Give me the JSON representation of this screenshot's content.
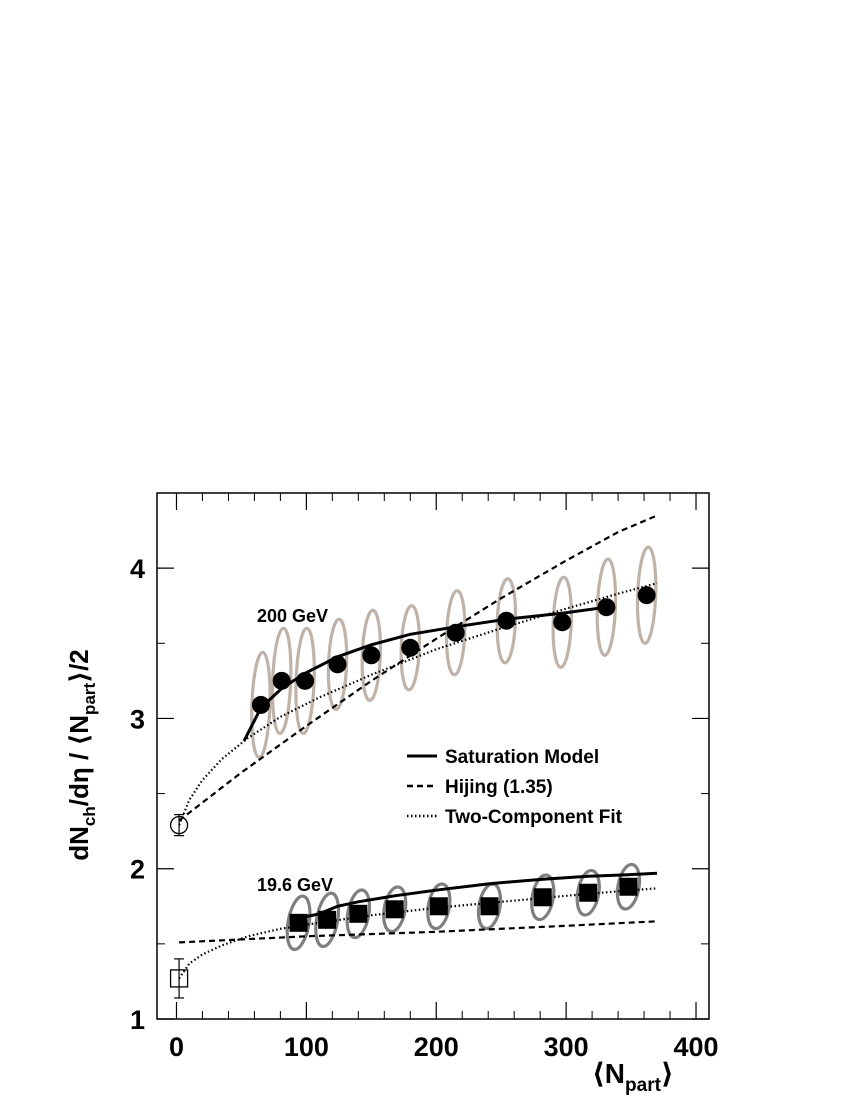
{
  "chart_data": {
    "type": "scatter",
    "xlabel": "⟨N_part⟩",
    "ylabel": "dN_ch/dη / ⟨N_part⟩/2",
    "xlim": [
      -15,
      410
    ],
    "ylim": [
      1,
      4.5
    ],
    "x_ticks": [
      0,
      100,
      200,
      300,
      400
    ],
    "y_ticks": [
      1,
      2,
      3,
      4
    ],
    "annotations": [
      "200 GeV",
      "19.6 GeV"
    ],
    "legend": {
      "placement": "middle-right",
      "entries": [
        {
          "label": "Saturation Model",
          "style": "solid"
        },
        {
          "label": "Hijing (1.35)",
          "style": "dashed"
        },
        {
          "label": "Two-Component Fit",
          "style": "dotted"
        }
      ]
    },
    "colors": {
      "marker": "#000000",
      "ellipse_200": "#bfb3a9",
      "ellipse_19": "#7f7f7f"
    },
    "series": [
      {
        "marker": "circle",
        "energy": "200 GeV",
        "x": [
          65,
          81,
          99,
          124,
          150,
          180,
          215,
          254,
          297,
          331,
          362
        ],
        "y": [
          3.09,
          3.25,
          3.25,
          3.36,
          3.42,
          3.47,
          3.57,
          3.65,
          3.64,
          3.74,
          3.82
        ],
        "ellipse_half_height": [
          0.35,
          0.35,
          0.35,
          0.3,
          0.3,
          0.28,
          0.28,
          0.28,
          0.3,
          0.32,
          0.32
        ]
      },
      {
        "marker": "square",
        "energy": "19.6 GeV",
        "x": [
          94,
          116,
          140,
          168,
          202,
          241,
          282,
          317,
          348
        ],
        "y": [
          1.64,
          1.66,
          1.7,
          1.73,
          1.75,
          1.75,
          1.81,
          1.84,
          1.88
        ],
        "ellipse_half_height": [
          0.18,
          0.18,
          0.16,
          0.15,
          0.15,
          0.15,
          0.15,
          0.15,
          0.15
        ]
      }
    ],
    "reference_points": [
      {
        "marker": "open-circle",
        "x": 2,
        "y": 2.29,
        "err": 0.07
      },
      {
        "marker": "open-square",
        "x": 2,
        "y": 1.27,
        "err": 0.13
      }
    ],
    "curves": [
      {
        "name": "Saturation Model",
        "energy": "200 GeV",
        "style": "solid",
        "x": [
          52,
          65,
          81,
          99,
          124,
          150,
          180,
          215,
          254,
          297,
          331
        ],
        "y": [
          2.85,
          3.07,
          3.2,
          3.3,
          3.41,
          3.49,
          3.56,
          3.61,
          3.66,
          3.7,
          3.74
        ]
      },
      {
        "name": "Saturation Model",
        "energy": "19.6 GeV",
        "style": "solid",
        "x": [
          94,
          110,
          124,
          140,
          168,
          202,
          241,
          282,
          317,
          348,
          370
        ],
        "y": [
          1.67,
          1.7,
          1.75,
          1.78,
          1.82,
          1.86,
          1.9,
          1.93,
          1.95,
          1.96,
          1.97
        ]
      },
      {
        "name": "Hijing (1.35)",
        "energy": "200 GeV",
        "style": "dashed",
        "x": [
          2,
          50,
          100,
          150,
          200,
          250,
          300,
          340,
          370
        ],
        "y": [
          2.32,
          2.64,
          2.95,
          3.25,
          3.53,
          3.8,
          4.05,
          4.24,
          4.35
        ]
      },
      {
        "name": "Hijing (1.35)",
        "energy": "19.6 GeV",
        "style": "dashed",
        "x": [
          2,
          100,
          200,
          300,
          370
        ],
        "y": [
          1.51,
          1.55,
          1.58,
          1.62,
          1.65
        ]
      },
      {
        "name": "Two-Component Fit",
        "energy": "200 GeV",
        "style": "dotted",
        "x": [
          2,
          10,
          20,
          35,
          55,
          80,
          110,
          150,
          200,
          250,
          300,
          340,
          370
        ],
        "y": [
          2.29,
          2.46,
          2.59,
          2.73,
          2.87,
          3.01,
          3.14,
          3.29,
          3.46,
          3.6,
          3.73,
          3.83,
          3.9
        ]
      },
      {
        "name": "Two-Component Fit",
        "energy": "19.6 GeV",
        "style": "dotted",
        "x": [
          2,
          10,
          20,
          35,
          55,
          80,
          110,
          150,
          200,
          250,
          300,
          340,
          370
        ],
        "y": [
          1.27,
          1.37,
          1.43,
          1.49,
          1.55,
          1.6,
          1.64,
          1.69,
          1.74,
          1.78,
          1.82,
          1.85,
          1.87
        ]
      }
    ]
  }
}
